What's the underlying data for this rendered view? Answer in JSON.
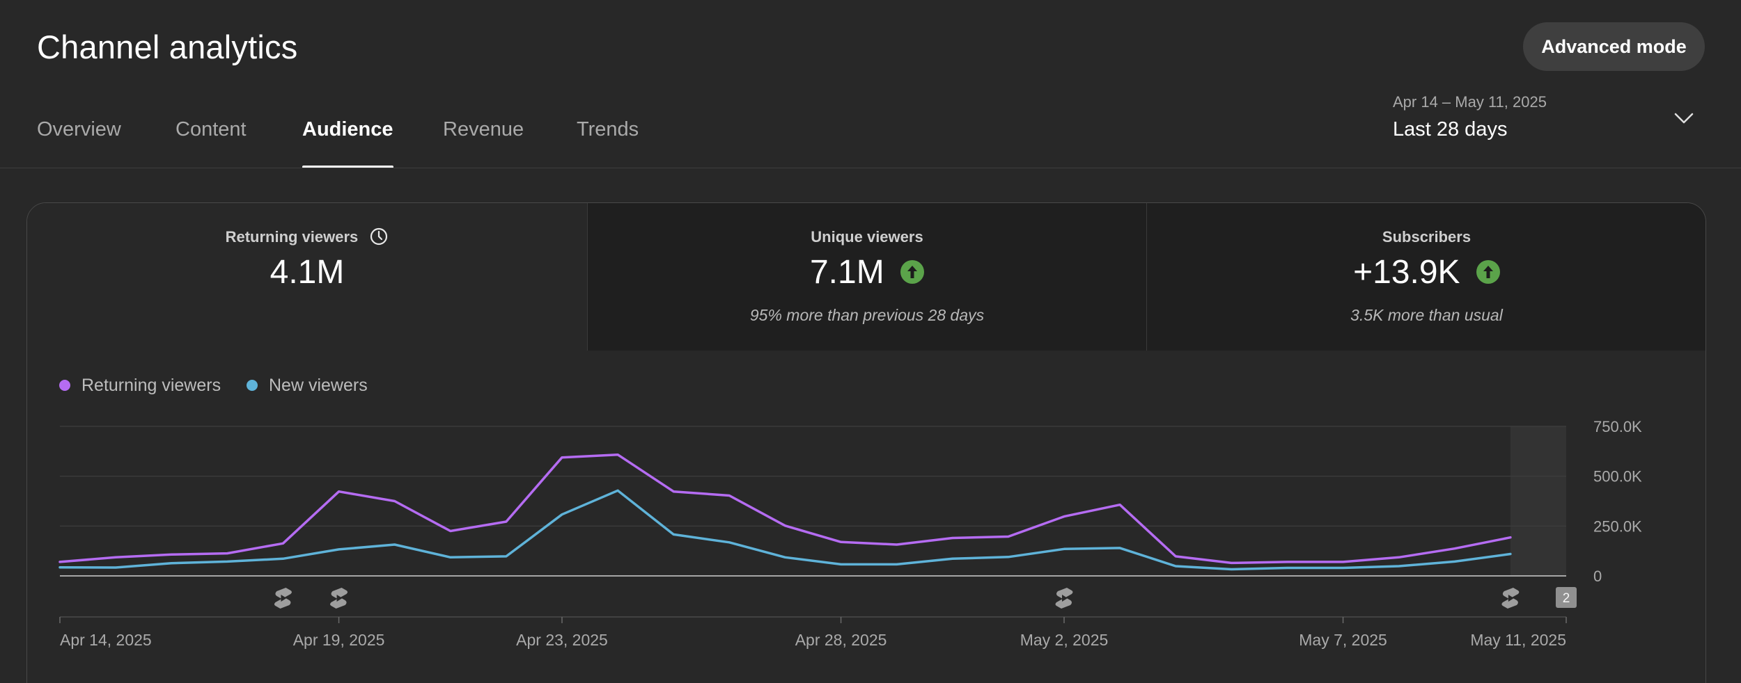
{
  "header": {
    "title": "Channel analytics",
    "advanced_mode_label": "Advanced mode"
  },
  "tabs": [
    {
      "label": "Overview"
    },
    {
      "label": "Content"
    },
    {
      "label": "Audience",
      "active": true
    },
    {
      "label": "Revenue"
    },
    {
      "label": "Trends"
    }
  ],
  "date_range": {
    "range_text": "Apr 14 – May 11, 2025",
    "preset_label": "Last 28 days"
  },
  "metrics": [
    {
      "label": "Returning viewers",
      "value": "4.1M",
      "note": "",
      "icon": "clock-icon"
    },
    {
      "label": "Unique viewers",
      "value": "7.1M",
      "note": "95% more than previous 28 days",
      "icon": "arrow-up-icon"
    },
    {
      "label": "Subscribers",
      "value": "+13.9K",
      "note": "3.5K more than usual",
      "icon": "arrow-up-icon"
    }
  ],
  "colors": {
    "returning": "#b56cf2",
    "new": "#5fb3d9",
    "up_badge": "#5ba34a",
    "background": "#282828"
  },
  "chart_data": {
    "type": "line",
    "x": [
      "Apr 14, 2025",
      "Apr 15, 2025",
      "Apr 16, 2025",
      "Apr 17, 2025",
      "Apr 18, 2025",
      "Apr 19, 2025",
      "Apr 20, 2025",
      "Apr 21, 2025",
      "Apr 22, 2025",
      "Apr 23, 2025",
      "Apr 24, 2025",
      "Apr 25, 2025",
      "Apr 26, 2025",
      "Apr 27, 2025",
      "Apr 28, 2025",
      "Apr 29, 2025",
      "Apr 30, 2025",
      "May 1, 2025",
      "May 2, 2025",
      "May 3, 2025",
      "May 4, 2025",
      "May 5, 2025",
      "May 6, 2025",
      "May 7, 2025",
      "May 8, 2025",
      "May 9, 2025",
      "May 10, 2025",
      "May 11, 2025"
    ],
    "series": [
      {
        "name": "Returning viewers",
        "values": [
          70000,
          93000,
          107000,
          113000,
          163000,
          423000,
          375000,
          225000,
          272000,
          594000,
          608000,
          423000,
          403000,
          252000,
          170000,
          157000,
          190000,
          197000,
          298000,
          357000,
          98000,
          65000,
          70000,
          70000,
          93000,
          137000,
          193000,
          null
        ]
      },
      {
        "name": "New viewers",
        "values": [
          43000,
          42000,
          64000,
          72000,
          86000,
          133000,
          157000,
          93000,
          98000,
          308000,
          428000,
          208000,
          168000,
          93000,
          58000,
          58000,
          86000,
          95000,
          135000,
          140000,
          49000,
          33000,
          40000,
          40000,
          49000,
          72000,
          110000,
          null
        ]
      }
    ],
    "x_tick_labels": [
      "Apr 14, 2025",
      "Apr 19, 2025",
      "Apr 23, 2025",
      "Apr 28, 2025",
      "May 2, 2025",
      "May 7, 2025",
      "May 11, 2025"
    ],
    "y_tick_labels": [
      "750.0K",
      "500.0K",
      "250.0K",
      "0"
    ],
    "ylim": [
      0,
      750000
    ],
    "legend": [
      {
        "name": "Returning viewers"
      },
      {
        "name": "New viewers"
      }
    ],
    "shorts_markers": [
      "Apr 18, 2025",
      "Apr 19, 2025",
      "May 2, 2025",
      "May 10, 2025"
    ],
    "count_marker": {
      "date": "May 11, 2025",
      "label": "2"
    }
  }
}
